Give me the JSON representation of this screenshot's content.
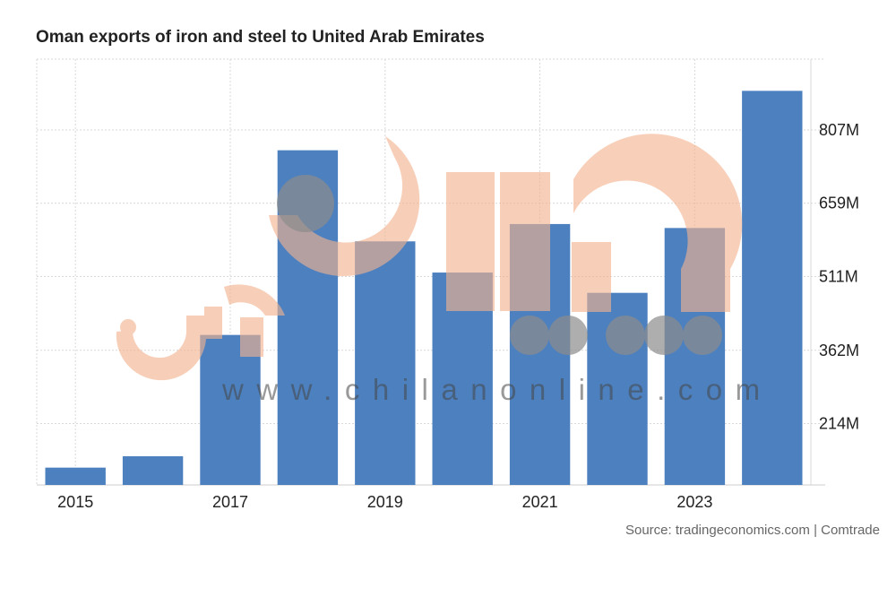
{
  "chart_data": {
    "type": "bar",
    "title": "Oman exports of iron and steel to United Arab Emirates",
    "categories": [
      "2015",
      "2016",
      "2017",
      "2018",
      "2019",
      "2020",
      "2021",
      "2022",
      "2023",
      "2024"
    ],
    "x_tick_labels": [
      "2015",
      "2017",
      "2019",
      "2021",
      "2023"
    ],
    "values": [
      125,
      148,
      393,
      766,
      582,
      519,
      617,
      478,
      609,
      886
    ],
    "y_tick_values": [
      214,
      362,
      511,
      659,
      807
    ],
    "y_tick_labels": [
      "214M",
      "362M",
      "511M",
      "659M",
      "807M"
    ],
    "ylim": [
      90,
      950
    ],
    "xlabel": "",
    "ylabel": "",
    "grid": true,
    "y_axis_position": "right",
    "bar_color": "#4d80bf",
    "grid_color": "#d9d9d9"
  },
  "source": "Source: tradingeconomics.com | Comtrade",
  "watermark": {
    "text": "www.chilanonline.com",
    "logo_color": "#f3b38f",
    "dot_color": "#8c8c8c"
  }
}
